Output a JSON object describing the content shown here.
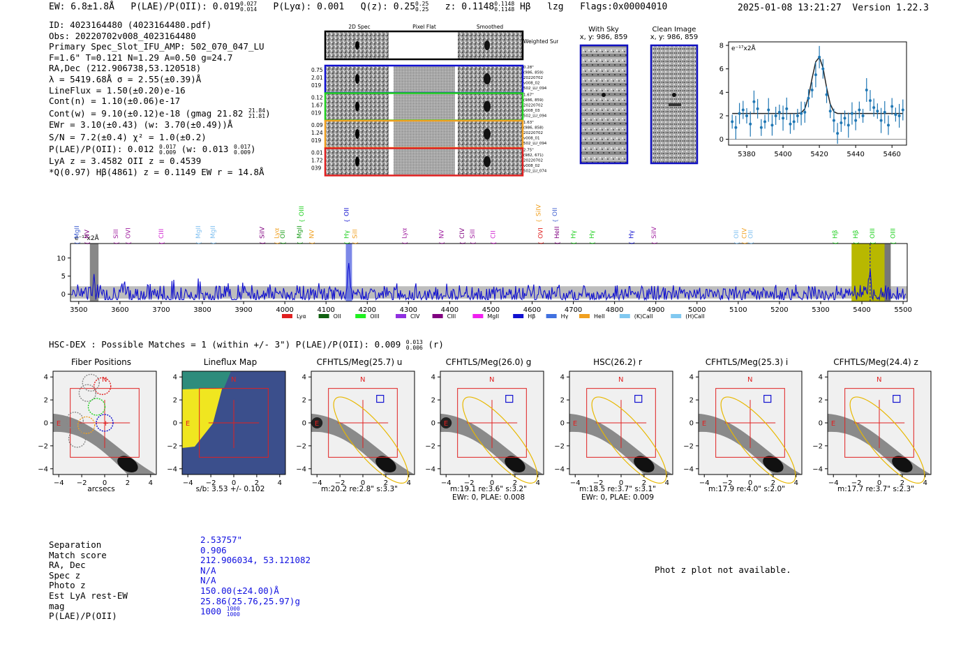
{
  "header": {
    "ew_label": "EW: 6.8±1.8Å",
    "plae_label": "P(LAE)/P(OII): 0.019",
    "plae_hi": "0.027",
    "plae_lo": "0.014",
    "plya": "P(Lyα): 0.001",
    "qz_label": "Q(z): 0.25",
    "qz_hi": "0.25",
    "qz_lo": "0.25",
    "z_label": "z: 0.1148",
    "z_hi": "0.1148",
    "z_lo": "0.1148",
    "line": "Hβ",
    "lzg": "lzg",
    "flags": "Flags:0x00004010",
    "timestamp": "2025-01-08 13:21:27",
    "version": "Version 1.22.3"
  },
  "info": {
    "id": "ID: 4023164480 (4023164480.pdf)",
    "obs": "Obs: 20220702v008_4023164480",
    "primary": "Primary Spec_Slot_IFU_AMP: 502_070_047_LU",
    "fit": "F=1.6\"  T=0.121  N=1.29  A=0.50  g=24.7",
    "radec": "RA,Dec (212.906738,53.120518)",
    "lambda": "λ = 5419.68Å  σ = 2.55(±0.39)Å",
    "lineflux": "LineFlux = 1.50(±0.20)e-16",
    "contn": "Cont(n) = 1.10(±0.06)e-17",
    "contw": "Cont(w) = 9.10(±0.12)e-18 (gmag 21.82",
    "contw_hi": "21.84",
    "contw_lo": "21.81",
    "ewr": "EWr = 3.10(±0.43) (w: 3.70(±0.49))Å",
    "sn": "S/N = 7.2(±0.4)  χ² = 1.0(±0.2)",
    "plae": "P(LAE)/P(OII): 0.012",
    "plae_hi": "0.017",
    "plae_lo": "0.009",
    "plae_w": "(w: 0.013",
    "plae_w_hi": "0.017",
    "plae_w_lo": "0.009",
    "lya_z": "LyA z = 3.4582  OII z = 0.4539",
    "hbeta": "*Q(0.97) Hβ(4861) z = 0.1149  EW r = 14.8Å"
  },
  "cutouts": {
    "col_titles": [
      "2D Spec",
      "Pixel Flat",
      "Smoothed"
    ],
    "weighted_sum": "Weighted Sum",
    "rows": [
      {
        "left": [
          "0.75",
          "2.01",
          "019"
        ],
        "right": [
          "0.28\"",
          "(986, 859)",
          "20220702",
          "v008_02",
          "502_LU_094"
        ],
        "color": "#1010d0"
      },
      {
        "left": [
          "0.12",
          "1.67",
          "019"
        ],
        "right": [
          "1.67\"",
          "(986, 859)",
          "20220702",
          "v008_03",
          "502_LU_094"
        ],
        "color": "#20d020"
      },
      {
        "left": [
          "0.09",
          "1.24",
          "019"
        ],
        "right": [
          "1.63\"",
          "(986, 858)",
          "20220702",
          "v008_01",
          "502_LU_094"
        ],
        "color": "#f0a020"
      },
      {
        "left": [
          "0.01",
          "1.72",
          "039"
        ],
        "right": [
          "2.75\"",
          "(982, 671)",
          "20220702",
          "v008_02",
          "502_LU_074"
        ],
        "color": "#e02020"
      }
    ]
  },
  "sky": {
    "with_sky": "With Sky",
    "with_sky_xy": "x, y: 986, 859",
    "clean": "Clean Image",
    "clean_xy": "x, y: 986, 859"
  },
  "zoom_chart": {
    "ylabel": "e⁻¹⁷x2Å",
    "xticks": [
      "5380",
      "5400",
      "5420",
      "5440",
      "5460"
    ],
    "yticks": [
      "0",
      "2",
      "4",
      "6",
      "8"
    ]
  },
  "chart_data": [
    {
      "type": "line",
      "title": "",
      "xlabel": "",
      "ylabel": "e⁻¹⁷x2Å",
      "xlim": [
        5370,
        5468
      ],
      "ylim": [
        -0.5,
        8.3
      ],
      "x": [
        5372,
        5374,
        5376,
        5378,
        5380,
        5382,
        5384,
        5386,
        5388,
        5390,
        5392,
        5394,
        5396,
        5398,
        5400,
        5402,
        5404,
        5406,
        5408,
        5410,
        5412,
        5414,
        5416,
        5418,
        5420,
        5422,
        5424,
        5426,
        5428,
        5430,
        5432,
        5434,
        5436,
        5438,
        5440,
        5442,
        5444,
        5446,
        5448,
        5450,
        5452,
        5454,
        5456,
        5458,
        5460,
        5462,
        5464,
        5466
      ],
      "series": [
        {
          "name": "data",
          "values": [
            1.5,
            1.0,
            2.2,
            2.5,
            2.0,
            1.3,
            3.2,
            2.6,
            1.0,
            1.5,
            2.5,
            1.2,
            2.0,
            2.3,
            1.8,
            2.6,
            1.3,
            1.5,
            2.0,
            2.2,
            2.3,
            3.5,
            4.2,
            5.5,
            7.0,
            6.0,
            3.8,
            2.4,
            1.6,
            0.5,
            1.4,
            1.8,
            1.2,
            2.2,
            1.6,
            2.5,
            2.0,
            4.2,
            3.3,
            2.7,
            2.4,
            1.6,
            2.3,
            1.2,
            2.8,
            2.1,
            2.0,
            2.5
          ]
        },
        {
          "name": "fit",
          "values": [
            2.2,
            2.2,
            2.2,
            2.2,
            2.2,
            2.2,
            2.2,
            2.2,
            2.2,
            2.2,
            2.2,
            2.2,
            2.2,
            2.2,
            2.2,
            2.2,
            2.2,
            2.2,
            2.2,
            2.25,
            2.6,
            3.6,
            5.2,
            6.6,
            7.0,
            6.1,
            4.4,
            3.0,
            2.35,
            2.2,
            2.2,
            2.2,
            2.2,
            2.2,
            2.2,
            2.2,
            2.2,
            2.2,
            2.2,
            2.2,
            2.2,
            2.2,
            2.2,
            2.2,
            2.2,
            2.2,
            2.2,
            2.2
          ]
        }
      ]
    },
    {
      "type": "line",
      "title": "",
      "xlabel": "",
      "ylabel": "e⁻¹⁷x2Å",
      "xlim": [
        3480,
        5510
      ],
      "ylim": [
        -2,
        14
      ],
      "xticks": [
        3500,
        3600,
        3700,
        3800,
        3900,
        4000,
        4100,
        4200,
        4300,
        4400,
        4500,
        4600,
        4700,
        4800,
        4900,
        5000,
        5100,
        5200,
        5300,
        5400,
        5500
      ],
      "yticks": [
        0,
        5,
        10
      ],
      "series": [
        {
          "name": "spectrum",
          "values": "noise ~ N(0,1.5) with line at 4155 (peak ~8) and line at 5420 (peak ~5)"
        }
      ],
      "lines": [
        {
          "name": "MgII",
          "x": 3495,
          "color": "#4060d0",
          "high": false
        },
        {
          "name": "NV",
          "x": 3520,
          "color": "#800080",
          "high": false
        },
        {
          "name": "SiII",
          "x": 3590,
          "color": "#a020a0",
          "high": false
        },
        {
          "name": "OVI",
          "x": 3620,
          "color": "#a020a0",
          "high": false
        },
        {
          "name": "CIII",
          "x": 3700,
          "color": "#d020d0",
          "high": false
        },
        {
          "name": "MgII",
          "x": 3790,
          "color": "#80c0f0",
          "high": false
        },
        {
          "name": "MgII",
          "x": 3825,
          "color": "#80c0f0",
          "high": false
        },
        {
          "name": "SiIV",
          "x": 3945,
          "color": "#800080",
          "high": false
        },
        {
          "name": "Lyα",
          "x": 3980,
          "color": "#f0a020",
          "high": false
        },
        {
          "name": "OII",
          "x": 3995,
          "color": "#20a020",
          "high": false
        },
        {
          "name": "MgII",
          "x": 4035,
          "color": "#20a020",
          "high": false
        },
        {
          "name": "OIII",
          "x": 4040,
          "color": "#20d020",
          "high": true
        },
        {
          "name": "NV",
          "x": 4065,
          "color": "#f0a020",
          "high": false
        },
        {
          "name": "OII",
          "x": 4150,
          "color": "#1010d0",
          "high": true
        },
        {
          "name": "Hγ",
          "x": 4150,
          "color": "#20d020",
          "high": false
        },
        {
          "name": "SiII",
          "x": 4170,
          "color": "#f0a020",
          "high": false
        },
        {
          "name": "Lyα",
          "x": 4290,
          "color": "#a020a0",
          "high": false
        },
        {
          "name": "NV",
          "x": 4380,
          "color": "#a020a0",
          "high": false
        },
        {
          "name": "CIV",
          "x": 4430,
          "color": "#800080",
          "high": false
        },
        {
          "name": "SiII",
          "x": 4455,
          "color": "#a020a0",
          "high": false
        },
        {
          "name": "CII",
          "x": 4505,
          "color": "#d020d0",
          "high": false
        },
        {
          "name": "SiIV",
          "x": 4615,
          "color": "#f0a020",
          "high": true
        },
        {
          "name": "OVI",
          "x": 4620,
          "color": "#e02020",
          "high": false
        },
        {
          "name": "OII",
          "x": 4655,
          "color": "#4060d0",
          "high": true
        },
        {
          "name": "HeII",
          "x": 4660,
          "color": "#800080",
          "high": false
        },
        {
          "name": "Hγ",
          "x": 4700,
          "color": "#20d020",
          "high": false
        },
        {
          "name": "Hγ",
          "x": 4745,
          "color": "#20d020",
          "high": false
        },
        {
          "name": "Hγ",
          "x": 4840,
          "color": "#1010d0",
          "high": false
        },
        {
          "name": "SiIV",
          "x": 4895,
          "color": "#a020a0",
          "high": false
        },
        {
          "name": "OII",
          "x": 5095,
          "color": "#80c0f0",
          "high": false
        },
        {
          "name": "CIV",
          "x": 5115,
          "color": "#f0a020",
          "high": false
        },
        {
          "name": "OII",
          "x": 5130,
          "color": "#80c0f0",
          "high": false
        },
        {
          "name": "Hβ",
          "x": 5335,
          "color": "#20d020",
          "high": false
        },
        {
          "name": "Hβ",
          "x": 5385,
          "color": "#20d020",
          "high": false
        },
        {
          "name": "OIII",
          "x": 5425,
          "color": "#20d020",
          "high": false
        },
        {
          "name": "OIII",
          "x": 5475,
          "color": "#20d020",
          "high": false
        }
      ],
      "legend": [
        "Lyα",
        "OII",
        "OIII",
        "CIV",
        "CIII",
        "MgII",
        "Hβ",
        "Hγ",
        "HeII",
        "(K)CaII",
        "(H)CaII"
      ],
      "legend_colors": [
        "#e02020",
        "#106010",
        "#20f020",
        "#9030e0",
        "#800080",
        "#f020f0",
        "#1010d0",
        "#4070e0",
        "#f0a020",
        "#80c8f0",
        "#80c8f0"
      ]
    }
  ],
  "hsc": {
    "title": "HSC-DEX : Possible Matches = 1 (within +/- 3\")  P(LAE)/P(OII): 0.009",
    "hi": "0.013",
    "lo": "0.006",
    "band": "(r)"
  },
  "panels": [
    {
      "title": "Fiber Positions",
      "caption1": "arcsecs",
      "caption2": ""
    },
    {
      "title": "Lineflux Map",
      "caption1": "s/b: 3.53 +/- 0.102",
      "caption2": ""
    },
    {
      "title": "CFHTLS/Meg(25.7) u",
      "caption1": "m:20.2  re:2.8\"  s:3.3\"",
      "caption2": ""
    },
    {
      "title": "CFHTLS/Meg(26.0) g",
      "caption1": "m:19.1  re:3.6\"  s:3.2\"",
      "caption2": "EWr: 0, PLAE: 0.008"
    },
    {
      "title": "HSC(26.2) r",
      "caption1": "m:18.5  re:3.7\"  s:3.1\"",
      "caption2": "EWr: 0, PLAE: 0.009"
    },
    {
      "title": "CFHTLS/Meg(25.3) i",
      "caption1": "m:17.9  re:4.0\"  s:2.0\"",
      "caption2": ""
    },
    {
      "title": "CFHTLS/Meg(24.4) z",
      "caption1": "m:17.7  re:3.7\"  s:2.3\"",
      "caption2": ""
    }
  ],
  "panel_axis": {
    "xticks": [
      "−4",
      "−2",
      "0",
      "2",
      "4"
    ],
    "yticks": [
      "4",
      "2",
      "0",
      "−2",
      "−4"
    ],
    "north": "N",
    "east": "E"
  },
  "match": {
    "labels": [
      "Separation",
      "Match score",
      "RA, Dec",
      "Spec z",
      "Photo z",
      "Est LyA rest-EW",
      "mag",
      "P(LAE)/P(OII)"
    ],
    "values": [
      "2.53757\"",
      "0.906",
      "212.906034, 53.121082",
      "N/A",
      "N/A",
      "150.00(±24.00)Å",
      "25.86(25.76,25.97)g",
      "1000"
    ],
    "plae_hi": "1000",
    "plae_lo": "1000",
    "photz_msg": "Phot z plot not available."
  }
}
